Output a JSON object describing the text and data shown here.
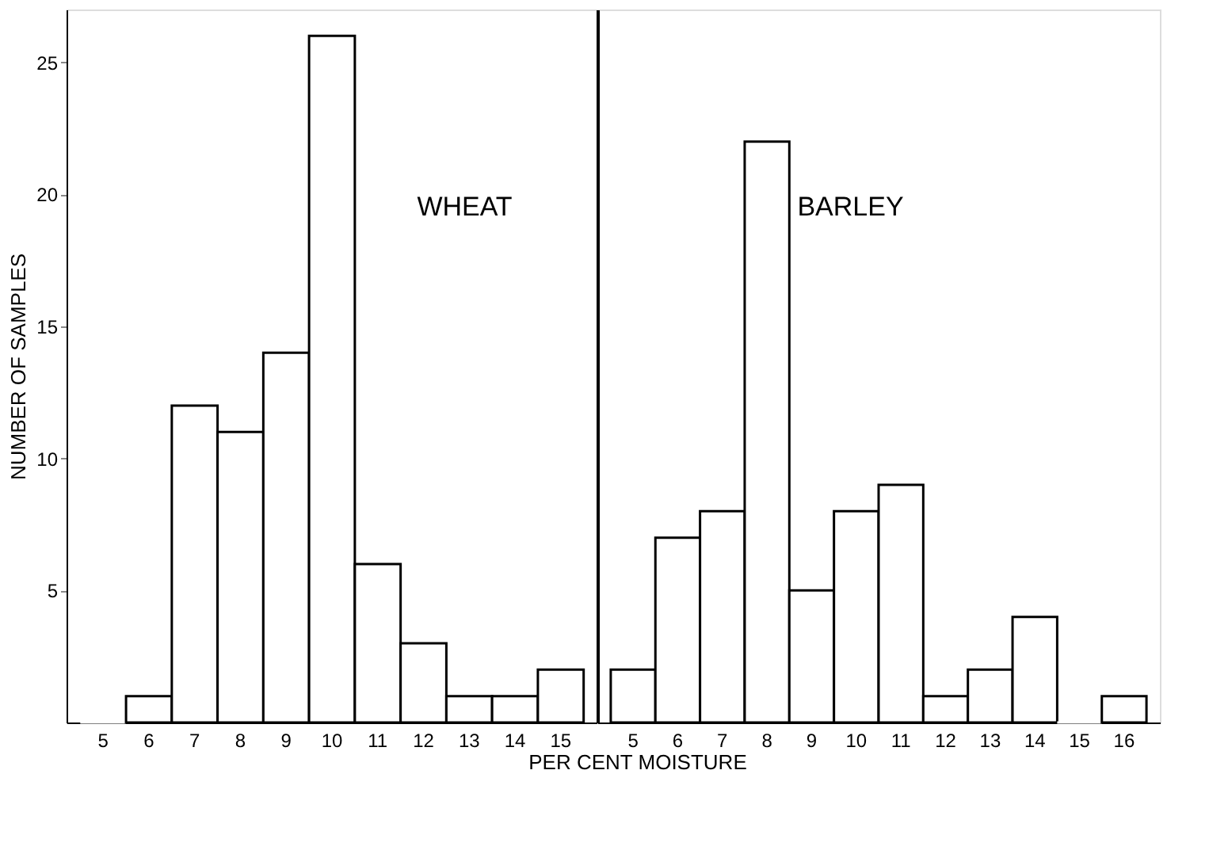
{
  "chart_data": [
    {
      "type": "bar",
      "categories": [
        "5",
        "6",
        "7",
        "8",
        "9",
        "10",
        "11",
        "12",
        "13",
        "14",
        "15"
      ],
      "values": [
        0,
        1,
        12,
        11,
        14,
        26,
        6,
        3,
        1,
        1,
        2
      ],
      "color": "#ffffff",
      "xlabel": "PER CENT MOISTURE",
      "ylabel": "NUMBER OF SAMPLES",
      "ylim": [
        0,
        27
      ],
      "yticks": [
        5,
        10,
        15,
        20,
        25
      ],
      "annotations": [
        "WHEAT"
      ],
      "grid": false
    },
    {
      "type": "bar",
      "categories": [
        "5",
        "6",
        "7",
        "8",
        "9",
        "10",
        "11",
        "12",
        "13",
        "14",
        "15",
        "16"
      ],
      "values": [
        2,
        7,
        8,
        22,
        5,
        8,
        9,
        1,
        2,
        4,
        0,
        1
      ],
      "color": "#ffffff",
      "ylim": [
        0,
        27
      ],
      "tick_labels": "x",
      "annotations": [
        "BARLEY"
      ],
      "grid": false
    }
  ]
}
